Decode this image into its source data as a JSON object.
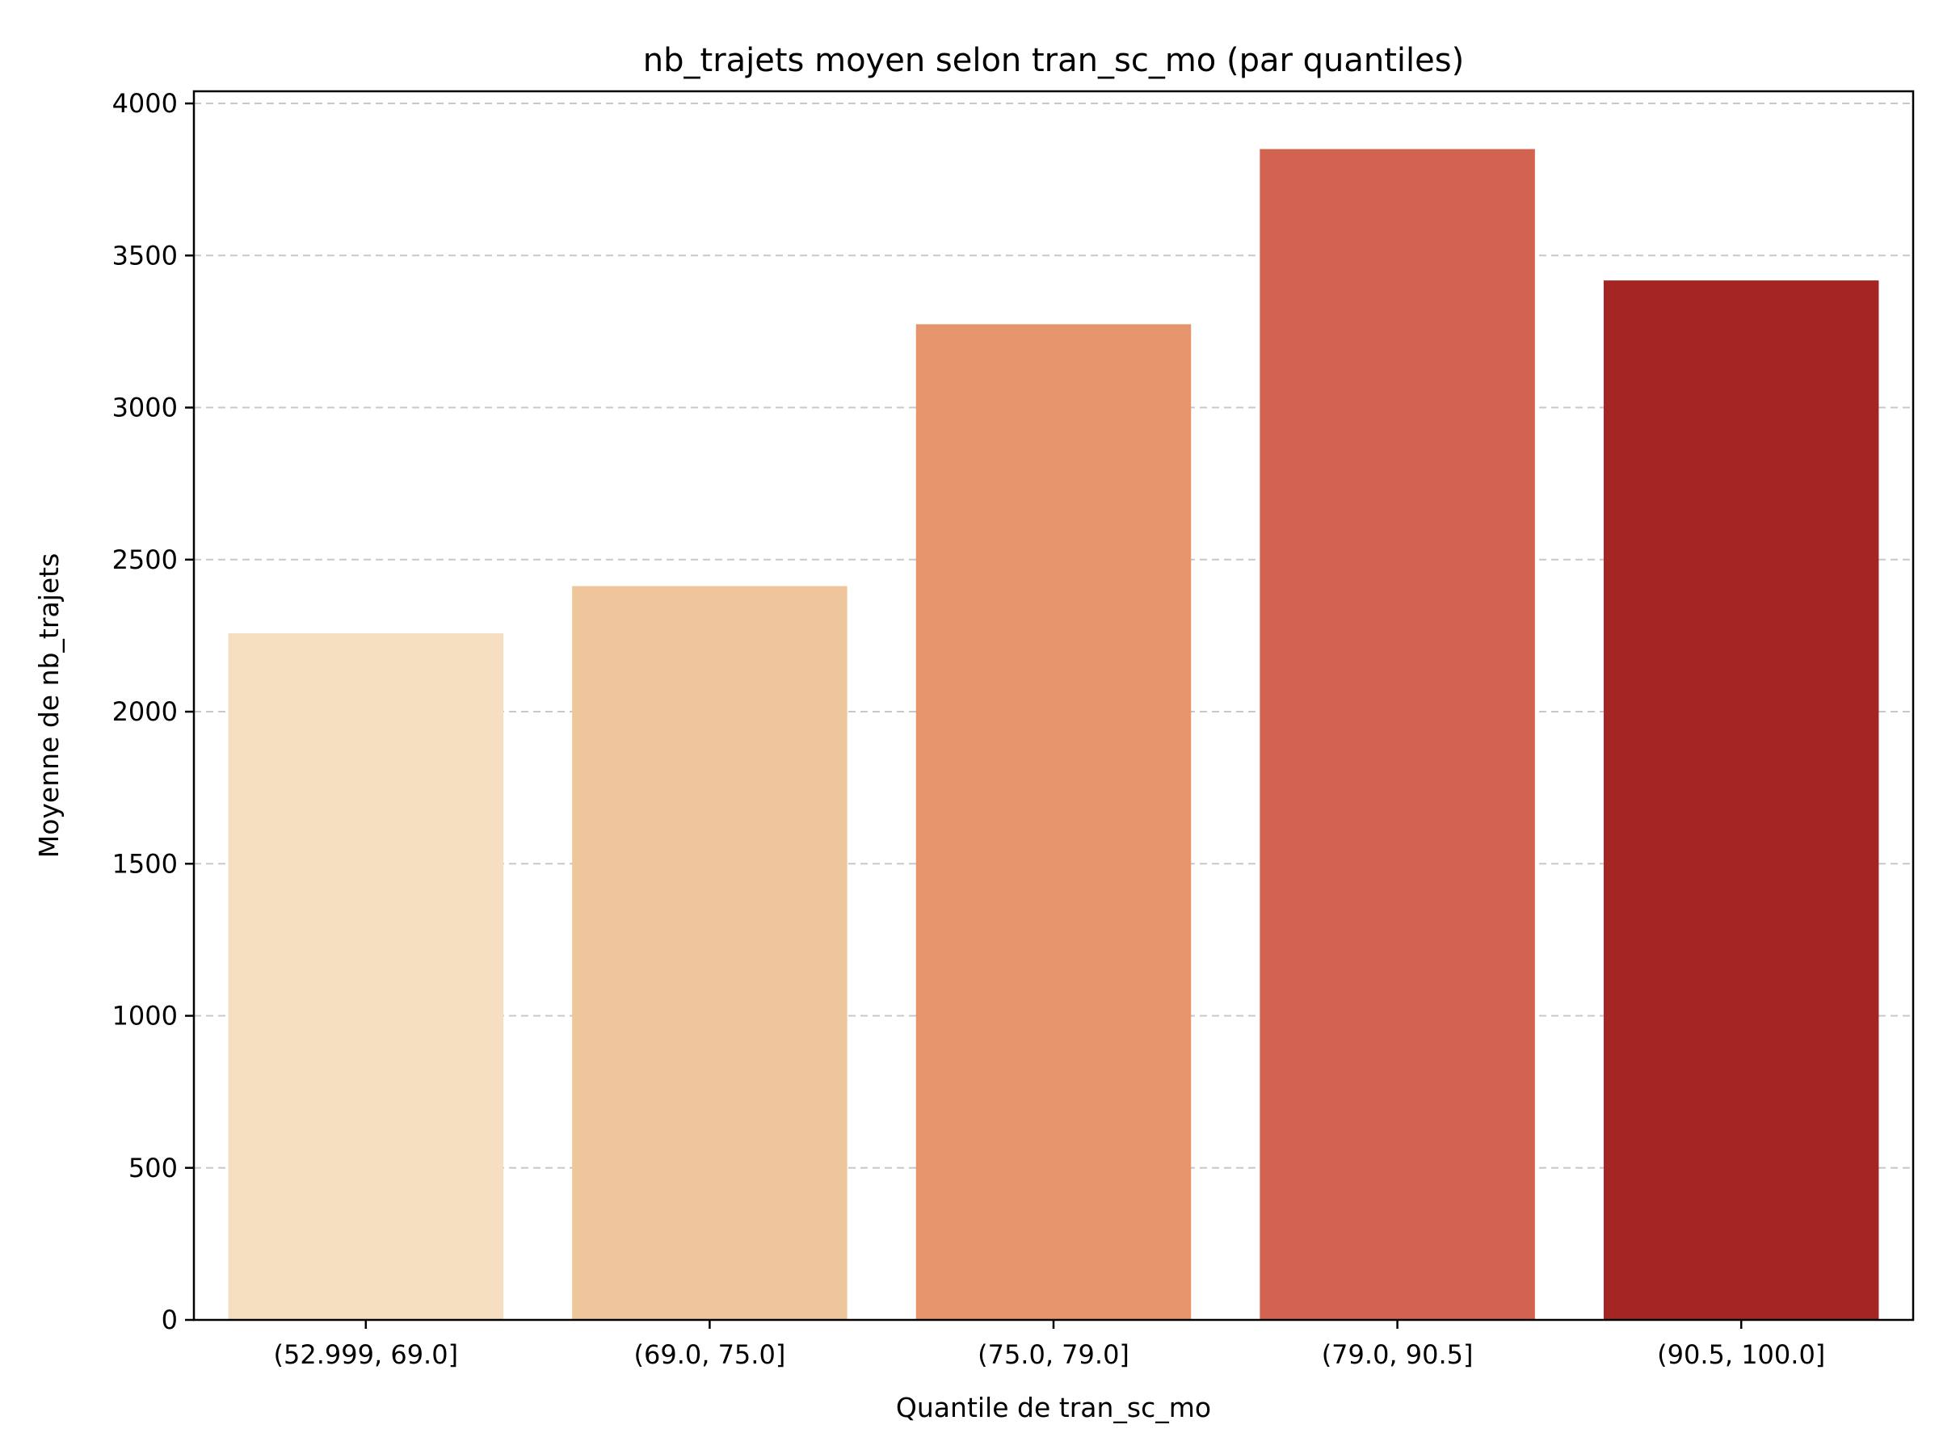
{
  "chart_data": {
    "type": "bar",
    "title": "nb_trajets moyen selon tran_sc_mo (par quantiles)",
    "xlabel": "Quantile de tran_sc_mo",
    "ylabel": "Moyenne de nb_trajets",
    "categories": [
      "(52.999, 69.0]",
      "(69.0, 75.0]",
      "(75.0, 79.0]",
      "(79.0, 90.5]",
      "(90.5, 100.0]"
    ],
    "values": [
      2258,
      2413,
      3274,
      3850,
      3418
    ],
    "colors": [
      "#f6dfc1",
      "#efc59b",
      "#e5946c",
      "#d26350",
      "#a52522"
    ],
    "ylim": [
      0,
      4040
    ],
    "yticks": [
      0,
      500,
      1000,
      1500,
      2000,
      2500,
      3000,
      3500,
      4000
    ],
    "ytick_labels": [
      "0",
      "500",
      "1000",
      "1500",
      "2000",
      "2500",
      "3000",
      "3500",
      "4000"
    ],
    "grid": "y-dashed",
    "legend": "none"
  }
}
